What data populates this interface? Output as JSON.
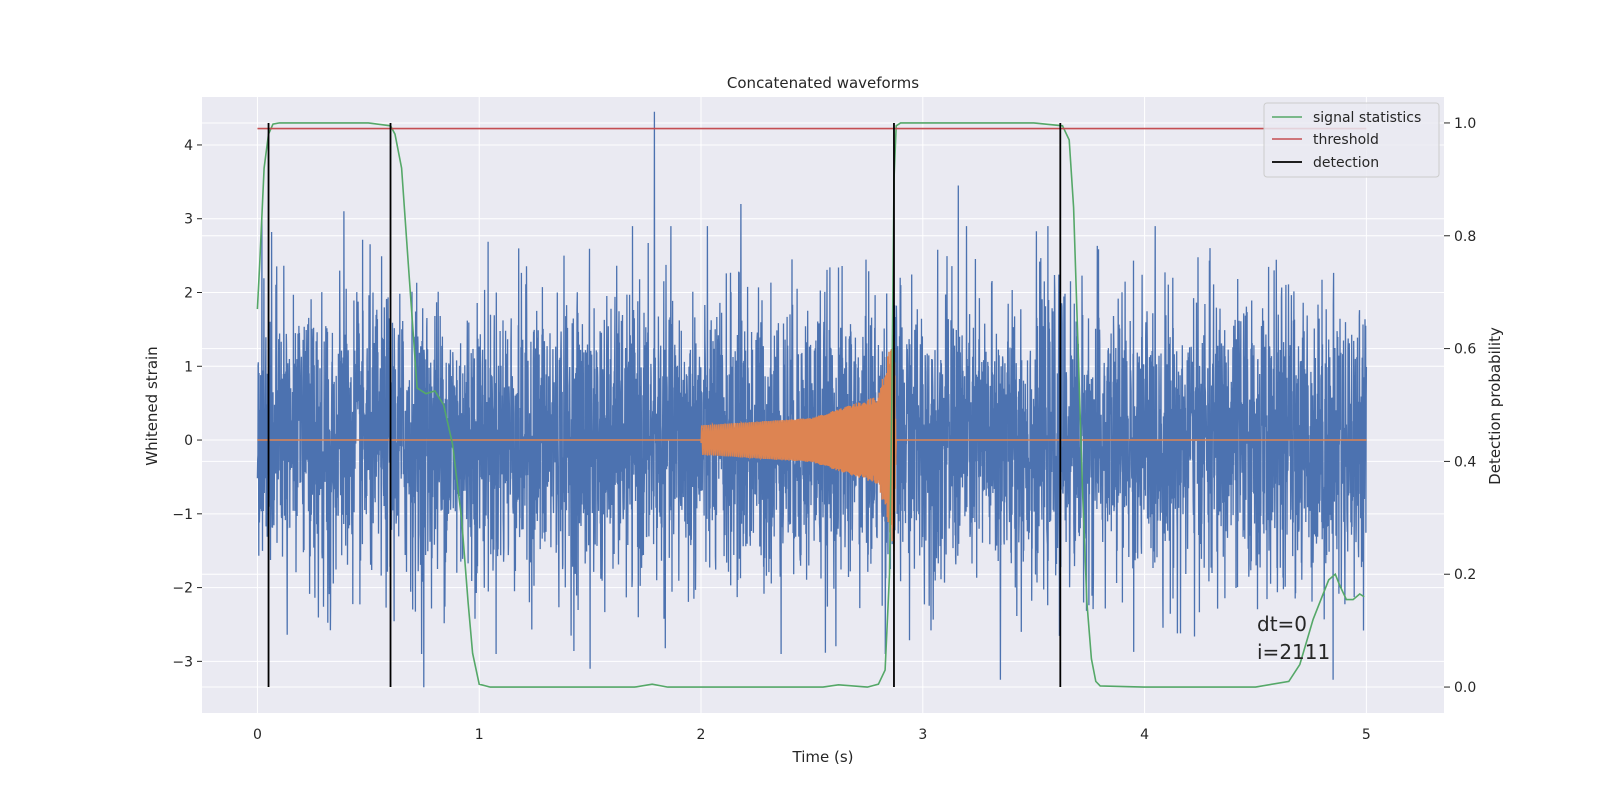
{
  "chart_data": {
    "type": "line",
    "title": "Concatenated waveforms",
    "xlabel": "Time (s)",
    "ylabel": "Whitened strain",
    "y2label": "Detection probability",
    "xlim": [
      -0.25,
      5.35
    ],
    "ylim": [
      -3.7,
      4.65
    ],
    "y2lim": [
      -0.046,
      1.046
    ],
    "xticks": [
      0,
      1,
      2,
      3,
      4,
      5
    ],
    "yticks": [
      -3,
      -2,
      -1,
      0,
      1,
      2,
      3,
      4
    ],
    "y2ticks": [
      0.0,
      0.2,
      0.4,
      0.6,
      0.8,
      1.0
    ],
    "xtick_labels": [
      "0",
      "1",
      "2",
      "3",
      "4",
      "5"
    ],
    "ytick_labels": [
      "−3",
      "−2",
      "−1",
      "0",
      "1",
      "2",
      "3",
      "4"
    ],
    "y2tick_labels": [
      "0.0",
      "0.2",
      "0.4",
      "0.6",
      "0.8",
      "1.0"
    ],
    "grid": true,
    "legend_placement": "top-right",
    "legend": [
      "signal statistics",
      "threshold",
      "detection"
    ],
    "annotations": [
      "dt=0",
      "i=2111"
    ],
    "colors": {
      "background": "#eaeaf2",
      "grid": "#ffffff",
      "strain": "#4c72b0",
      "injected_signal": "#dd8452",
      "signal_statistics": "#55a868",
      "threshold": "#c44e52",
      "detection": "#000000"
    },
    "series": [
      {
        "role": "whitened-strain",
        "axis": "left",
        "x_range": [
          0,
          5
        ],
        "typical_amplitude": 1.8,
        "peak_values": [
          [
            0.02,
            3.0
          ],
          [
            0.39,
            3.1
          ],
          [
            1.79,
            4.45
          ],
          [
            2.18,
            3.2
          ],
          [
            3.16,
            3.45
          ],
          [
            1.5,
            -3.1
          ],
          [
            0.75,
            -3.35
          ],
          [
            3.35,
            -3.25
          ],
          [
            4.85,
            -3.25
          ]
        ]
      },
      {
        "role": "injected-chirp",
        "axis": "left",
        "x": [
          0,
          2.0,
          2.0,
          2.5,
          2.8,
          2.87,
          2.88,
          5
        ],
        "envelope": [
          0,
          0,
          0.2,
          0.3,
          0.6,
          1.5,
          0,
          0
        ]
      },
      {
        "name": "signal statistics",
        "axis": "right",
        "x": [
          0.0,
          0.01,
          0.03,
          0.05,
          0.07,
          0.1,
          0.2,
          0.5,
          0.6,
          0.62,
          0.65,
          0.68,
          0.72,
          0.76,
          0.8,
          0.84,
          0.88,
          0.92,
          0.95,
          0.97,
          1.0,
          1.05,
          1.3,
          1.7,
          1.78,
          1.85,
          2.2,
          2.55,
          2.62,
          2.75,
          2.8,
          2.83,
          2.85,
          2.86,
          2.87,
          2.88,
          2.9,
          2.92,
          2.95,
          3.1,
          3.5,
          3.63,
          3.66,
          3.68,
          3.7,
          3.72,
          3.74,
          3.76,
          3.78,
          3.8,
          4.0,
          4.5,
          4.65,
          4.7,
          4.73,
          4.76,
          4.8,
          4.83,
          4.86,
          4.88,
          4.91,
          4.94,
          4.97,
          4.99
        ],
        "y": [
          0.67,
          0.75,
          0.92,
          0.98,
          0.998,
          1.0,
          1.0,
          1.0,
          0.995,
          0.98,
          0.92,
          0.75,
          0.53,
          0.52,
          0.525,
          0.5,
          0.43,
          0.3,
          0.15,
          0.06,
          0.005,
          0.0,
          0.0,
          0.0,
          0.005,
          0.0,
          0.0,
          0.0,
          0.004,
          0.0,
          0.005,
          0.03,
          0.2,
          0.5,
          0.9,
          0.995,
          1.0,
          1.0,
          1.0,
          1.0,
          1.0,
          0.995,
          0.97,
          0.85,
          0.6,
          0.35,
          0.15,
          0.05,
          0.01,
          0.002,
          0.0,
          0.0,
          0.01,
          0.04,
          0.08,
          0.12,
          0.16,
          0.19,
          0.2,
          0.18,
          0.155,
          0.155,
          0.165,
          0.16
        ]
      },
      {
        "name": "threshold",
        "axis": "right",
        "x": [
          0,
          5
        ],
        "y": [
          0.99,
          0.99
        ]
      },
      {
        "name": "detection",
        "axis": "right",
        "x": [
          0.05,
          0.6,
          2.87,
          3.62
        ],
        "ymin": 0.0,
        "ymax": 1.0
      }
    ]
  }
}
